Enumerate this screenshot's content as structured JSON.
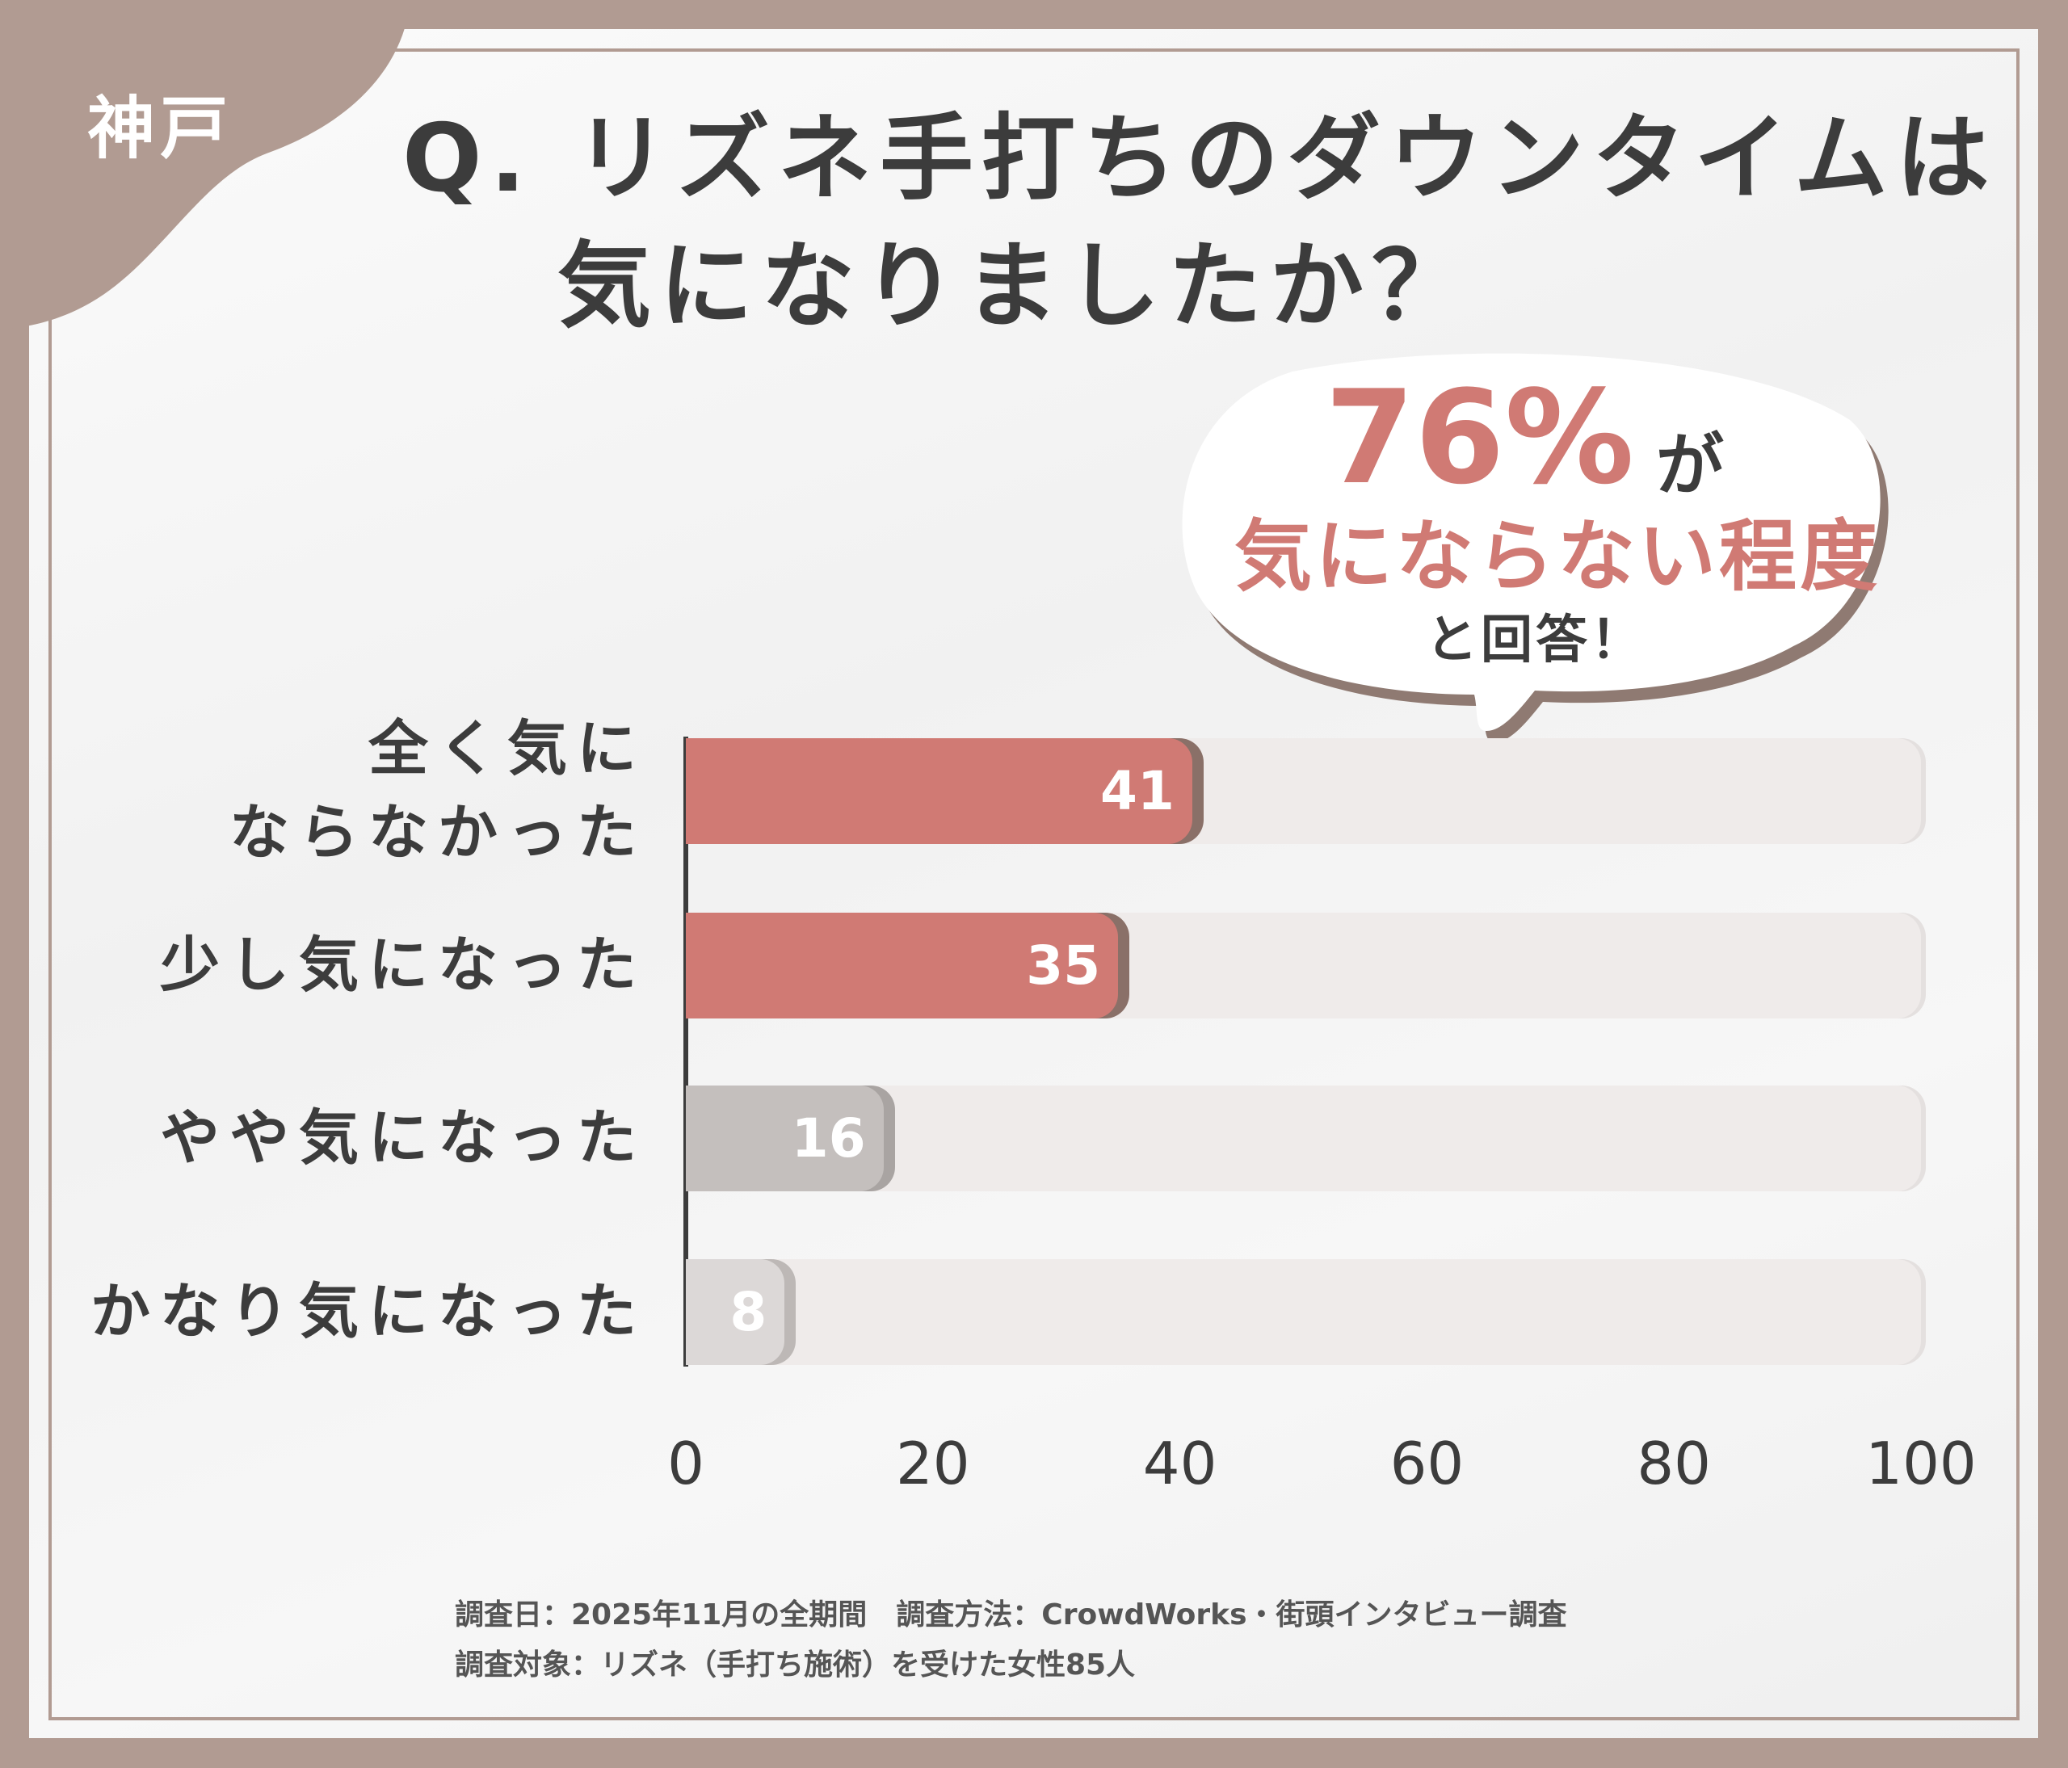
{
  "area_label": "神戸",
  "title": {
    "line1": "Q. リズネ手打ちのダウンタイムは",
    "line2": "気になりましたか？"
  },
  "callout": {
    "percent": "76%",
    "particle": "が",
    "highlight": "気にならない程度",
    "tail": "と回答！"
  },
  "colors": {
    "frame": "#b19b92",
    "accent": "#d07a74",
    "accent_shadow": "#8a7068",
    "neutral": "#c4bfbd",
    "neutral_light": "#dcd8d7",
    "track": "#efebea",
    "text": "#3c3c3c"
  },
  "chart_data": {
    "type": "bar",
    "orientation": "horizontal",
    "categories": [
      "全く気にならなかった",
      "少し気になった",
      "やや気になった",
      "かなり気になった"
    ],
    "category_lines": [
      [
        "全く気に",
        "ならなかった"
      ],
      [
        "少し気になった"
      ],
      [
        "やや気になった"
      ],
      [
        "かなり気になった"
      ]
    ],
    "values": [
      41,
      35,
      16,
      8
    ],
    "value_labels": [
      "41",
      "35",
      "16",
      "8"
    ],
    "xlim": [
      0,
      100
    ],
    "xticks": [
      "0",
      "20",
      "40",
      "60",
      "80",
      "100"
    ],
    "grid": false
  },
  "footer": {
    "line1": "調査日：2025年11月の全期間　調査方法：CrowdWorks・街頭インタビュー調査",
    "line2": "調査対象：リズネ（手打ち施術）を受けた女性85人"
  }
}
